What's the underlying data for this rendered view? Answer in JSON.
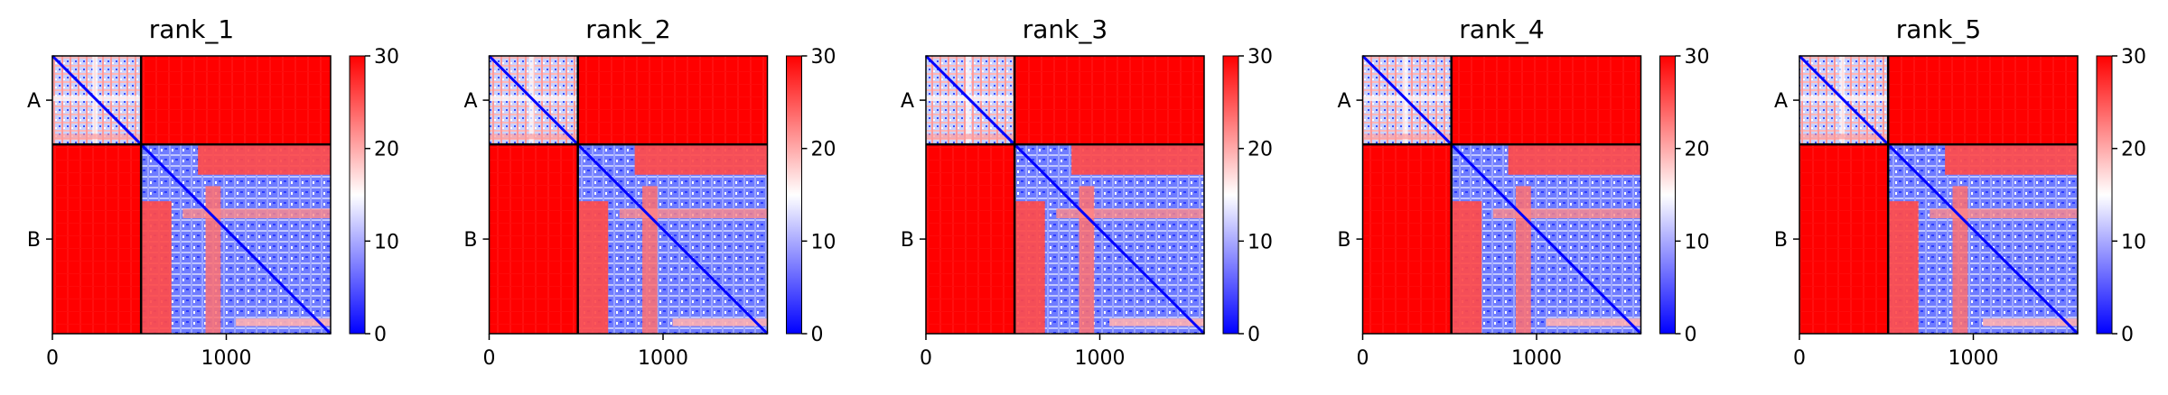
{
  "chart_data": [
    {
      "type": "heatmap",
      "title": "rank_1",
      "xlabel": "",
      "ylabel": "",
      "x_ticks": [
        0,
        1000
      ],
      "xlim": [
        0,
        1600
      ],
      "y_tick_labels": [
        "A",
        "B"
      ],
      "chain_boundary": 510,
      "colorbar": {
        "min": 0,
        "max": 30,
        "ticks": [
          0,
          10,
          20,
          30
        ],
        "colors": [
          "#0000ff",
          "#ffffff",
          "#ff0000"
        ]
      }
    },
    {
      "type": "heatmap",
      "title": "rank_2",
      "xlabel": "",
      "ylabel": "",
      "x_ticks": [
        0,
        1000
      ],
      "xlim": [
        0,
        1600
      ],
      "y_tick_labels": [
        "A",
        "B"
      ],
      "chain_boundary": 510,
      "colorbar": {
        "min": 0,
        "max": 30,
        "ticks": [
          0,
          10,
          20,
          30
        ],
        "colors": [
          "#0000ff",
          "#ffffff",
          "#ff0000"
        ]
      }
    },
    {
      "type": "heatmap",
      "title": "rank_3",
      "xlabel": "",
      "ylabel": "",
      "x_ticks": [
        0,
        1000
      ],
      "xlim": [
        0,
        1600
      ],
      "y_tick_labels": [
        "A",
        "B"
      ],
      "chain_boundary": 510,
      "colorbar": {
        "min": 0,
        "max": 30,
        "ticks": [
          0,
          10,
          20,
          30
        ],
        "colors": [
          "#0000ff",
          "#ffffff",
          "#ff0000"
        ]
      }
    },
    {
      "type": "heatmap",
      "title": "rank_4",
      "xlabel": "",
      "ylabel": "",
      "x_ticks": [
        0,
        1000
      ],
      "xlim": [
        0,
        1600
      ],
      "y_tick_labels": [
        "A",
        "B"
      ],
      "chain_boundary": 510,
      "colorbar": {
        "min": 0,
        "max": 30,
        "ticks": [
          0,
          10,
          20,
          30
        ],
        "colors": [
          "#0000ff",
          "#ffffff",
          "#ff0000"
        ]
      }
    },
    {
      "type": "heatmap",
      "title": "rank_5",
      "xlabel": "",
      "ylabel": "",
      "x_ticks": [
        0,
        1000
      ],
      "xlim": [
        0,
        1600
      ],
      "y_tick_labels": [
        "A",
        "B"
      ],
      "chain_boundary": 510,
      "colorbar": {
        "min": 0,
        "max": 30,
        "ticks": [
          0,
          10,
          20,
          30
        ],
        "colors": [
          "#0000ff",
          "#ffffff",
          "#ff0000"
        ]
      }
    }
  ]
}
